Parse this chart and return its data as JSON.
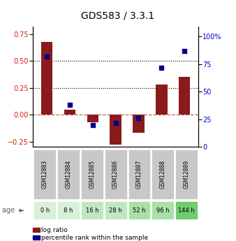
{
  "title": "GDS583 / 3.3.1",
  "categories": [
    "GSM12883",
    "GSM12884",
    "GSM12885",
    "GSM12886",
    "GSM12887",
    "GSM12888",
    "GSM12889"
  ],
  "ages": [
    "0 h",
    "8 h",
    "16 h",
    "28 h",
    "52 h",
    "96 h",
    "144 h"
  ],
  "log_ratio": [
    0.68,
    0.05,
    -0.07,
    -0.28,
    -0.17,
    0.28,
    0.35
  ],
  "percentile_rank": [
    82,
    38,
    20,
    22,
    26,
    72,
    87
  ],
  "ylim_left": [
    -0.3,
    0.82
  ],
  "ylim_right": [
    0,
    109
  ],
  "yticks_left": [
    -0.25,
    0,
    0.25,
    0.5,
    0.75
  ],
  "yticks_right": [
    0,
    25,
    50,
    75,
    100
  ],
  "ytick_labels_right": [
    "0",
    "25",
    "50",
    "75",
    "100%"
  ],
  "hlines": [
    0.25,
    0.5
  ],
  "bar_color": "#8B1A1A",
  "dot_color": "#00008B",
  "zero_line_color": "#CD5C5C",
  "hline_color": "#000000",
  "age_colors": [
    "#d8f0d8",
    "#d8f0d8",
    "#c0e8c0",
    "#c0e8c0",
    "#a8e0a8",
    "#a8e0a8",
    "#70cc70"
  ],
  "gsm_bg_color": "#c8c8c8",
  "bar_width": 0.5,
  "legend_items": [
    {
      "color": "#8B1A1A",
      "label": "log ratio"
    },
    {
      "color": "#00008B",
      "label": "percentile rank within the sample"
    }
  ]
}
